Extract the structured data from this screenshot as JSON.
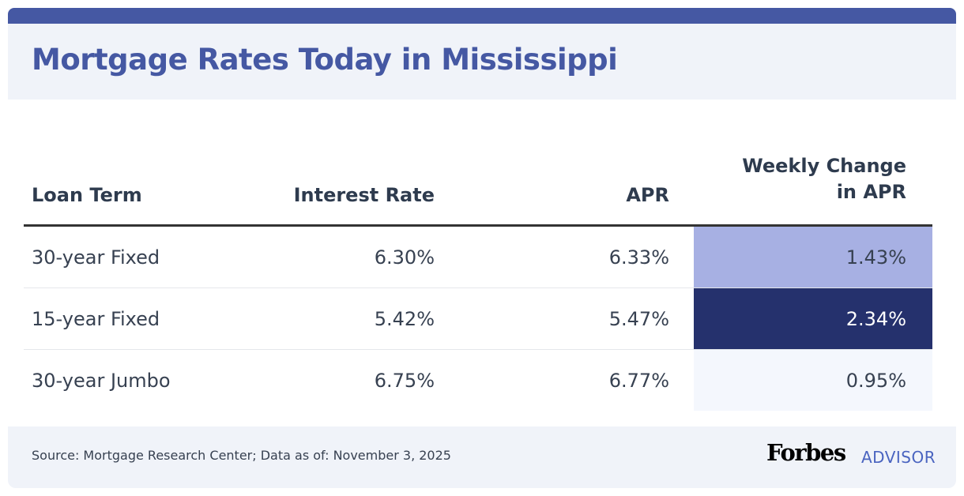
{
  "title": "Mortgage Rates Today in Mississippi",
  "colors": {
    "brand": "#4558a3",
    "high": "#25316d",
    "mid": "#a7b0e3",
    "low": "#f4f7fd"
  },
  "table": {
    "headers": [
      "Loan Term",
      "Interest Rate",
      "APR",
      "Weekly Change",
      "in APR"
    ],
    "rows": [
      {
        "term": "30-year Fixed",
        "rate": "6.30%",
        "apr": "6.33%",
        "change": "1.43%"
      },
      {
        "term": "15-year Fixed",
        "rate": "5.42%",
        "apr": "5.47%",
        "change": "2.34%"
      },
      {
        "term": "30-year Jumbo",
        "rate": "6.75%",
        "apr": "6.77%",
        "change": "0.95%"
      }
    ]
  },
  "footer": {
    "source": "Source: Mortgage Research Center; Data as of: November 3, 2025",
    "logo_main": "Forbes",
    "logo_sub": "ADVISOR"
  }
}
